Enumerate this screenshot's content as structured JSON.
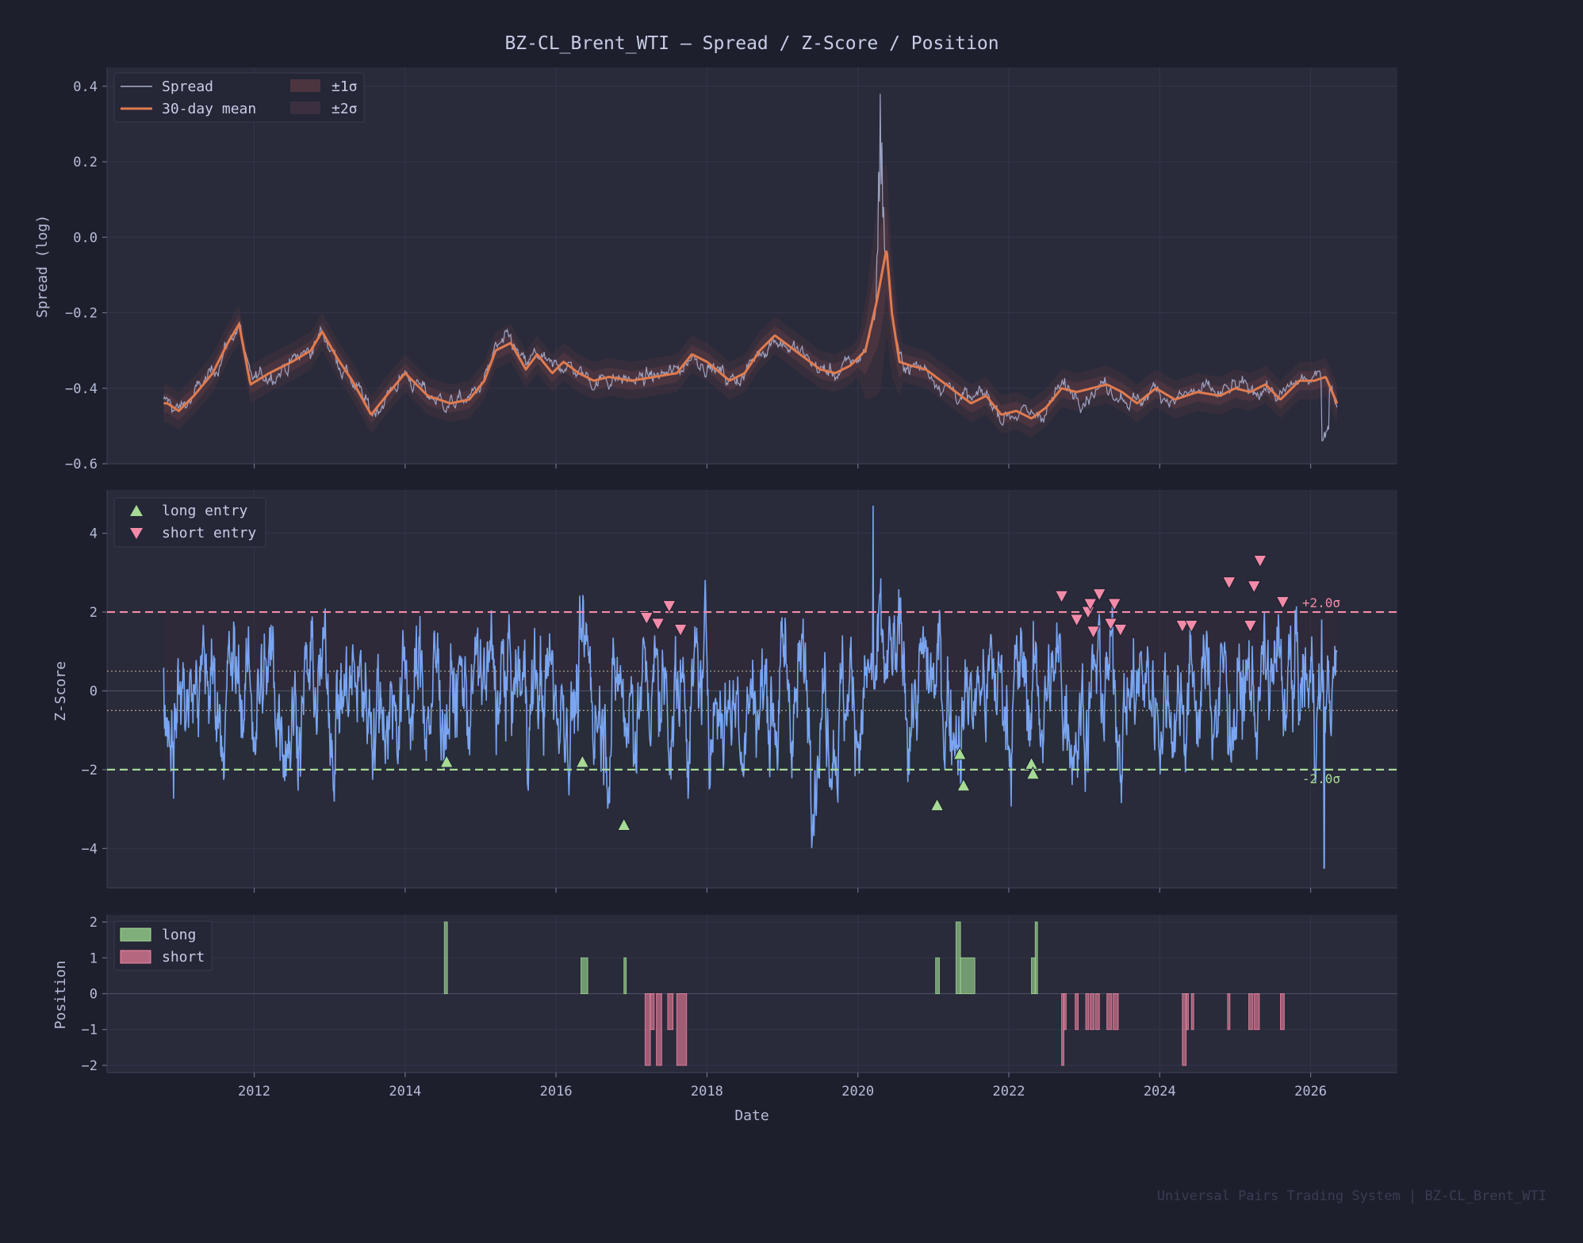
{
  "title": "BZ-CL_Brent_WTI  —  Spread  /  Z-Score  /  Position",
  "footer": "Universal Pairs Trading System  |  BZ-CL_Brent_WTI",
  "colors": {
    "background": "#1e1f2d",
    "panel": "#292a3a",
    "spread_line": "#a9afd0",
    "mean_line": "#e07b4f",
    "band": "#5a3a42",
    "zscore_line": "#7aa5f0",
    "long": "#a6da95",
    "short": "#f38ba8",
    "threshold_long": "#a6da95",
    "threshold_short": "#f38ba8",
    "exit_band": "#c8b89a",
    "text": "#b7bdd8",
    "footer": "#3a3d52"
  },
  "chart_data": [
    {
      "type": "line",
      "panel": "spread",
      "ylabel": "Spread (log)",
      "ylim": [
        -0.6,
        0.45
      ],
      "yticks": [
        0.4,
        0.2,
        0.0,
        -0.2,
        -0.4,
        -0.6
      ],
      "ytick_labels": [
        "0.4",
        "0.2",
        "0.0",
        "−0.2",
        "−0.4",
        "−0.6"
      ],
      "grid": true,
      "legend_position": "top-left",
      "legend": [
        "Spread",
        "30-day mean",
        "±1σ",
        "±2σ"
      ],
      "series": [
        {
          "name": "30-day mean",
          "x": [
            2010.85,
            2011.0,
            2011.2,
            2011.45,
            2011.65,
            2011.8,
            2011.95,
            2012.2,
            2012.5,
            2012.75,
            2012.9,
            2013.1,
            2013.3,
            2013.55,
            2013.75,
            2014.0,
            2014.3,
            2014.6,
            2014.85,
            2015.05,
            2015.2,
            2015.4,
            2015.6,
            2015.75,
            2015.95,
            2016.1,
            2016.3,
            2016.5,
            2016.7,
            2017.0,
            2017.3,
            2017.6,
            2017.8,
            2018.0,
            2018.3,
            2018.5,
            2018.7,
            2018.9,
            2019.1,
            2019.3,
            2019.5,
            2019.7,
            2019.9,
            2020.1,
            2020.25,
            2020.38,
            2020.45,
            2020.55,
            2020.7,
            2020.9,
            2021.1,
            2021.3,
            2021.5,
            2021.7,
            2021.9,
            2022.1,
            2022.3,
            2022.5,
            2022.7,
            2022.9,
            2023.1,
            2023.3,
            2023.5,
            2023.7,
            2023.95,
            2024.2,
            2024.5,
            2024.8,
            2025.0,
            2025.2,
            2025.4,
            2025.6,
            2025.85,
            2026.05,
            2026.2,
            2026.35
          ],
          "y": [
            -0.44,
            -0.46,
            -0.42,
            -0.36,
            -0.28,
            -0.23,
            -0.39,
            -0.36,
            -0.33,
            -0.3,
            -0.25,
            -0.32,
            -0.38,
            -0.47,
            -0.42,
            -0.36,
            -0.42,
            -0.44,
            -0.43,
            -0.38,
            -0.3,
            -0.28,
            -0.35,
            -0.31,
            -0.36,
            -0.33,
            -0.36,
            -0.38,
            -0.37,
            -0.38,
            -0.37,
            -0.36,
            -0.31,
            -0.33,
            -0.38,
            -0.36,
            -0.3,
            -0.26,
            -0.29,
            -0.32,
            -0.35,
            -0.36,
            -0.34,
            -0.3,
            -0.17,
            -0.03,
            -0.2,
            -0.33,
            -0.34,
            -0.35,
            -0.38,
            -0.41,
            -0.44,
            -0.42,
            -0.47,
            -0.46,
            -0.48,
            -0.45,
            -0.4,
            -0.41,
            -0.4,
            -0.39,
            -0.41,
            -0.44,
            -0.4,
            -0.43,
            -0.41,
            -0.42,
            -0.4,
            -0.41,
            -0.39,
            -0.43,
            -0.38,
            -0.38,
            -0.37,
            -0.44
          ]
        },
        {
          "name": "Spread",
          "noise_amplitude": 0.02,
          "spike_peak": [
            2020.3,
            0.41
          ],
          "trough": [
            2026.2,
            -0.54
          ]
        }
      ]
    },
    {
      "type": "line",
      "panel": "zscore",
      "ylabel": "Z-Score",
      "ylim": [
        -5.0,
        5.1
      ],
      "yticks": [
        4,
        2,
        0,
        -2,
        -4
      ],
      "ytick_labels": [
        "4",
        "2",
        "0",
        "−2",
        "−4"
      ],
      "grid": true,
      "legend_position": "top-left",
      "legend": [
        "long entry",
        "short entry"
      ],
      "thresholds": [
        {
          "value": 2.0,
          "label": "+2.0σ",
          "color": "#f38ba8"
        },
        {
          "value": -2.0,
          "label": "-2.0σ",
          "color": "#a6da95"
        }
      ],
      "exit_band": [
        -0.5,
        0.5
      ],
      "zscore_range": [
        -4.5,
        4.7
      ],
      "long_entries": {
        "x": [
          2014.55,
          2016.35,
          2016.9,
          2021.05,
          2021.35,
          2021.4,
          2022.3,
          2022.32
        ],
        "y": [
          -1.8,
          -1.8,
          -3.4,
          -2.9,
          -1.6,
          -2.4,
          -1.85,
          -2.1
        ]
      },
      "short_entries": {
        "x": [
          2017.2,
          2017.35,
          2017.5,
          2017.65,
          2022.7,
          2022.9,
          2023.05,
          2023.08,
          2023.12,
          2023.2,
          2023.35,
          2023.4,
          2023.48,
          2024.3,
          2024.42,
          2024.92,
          2025.2,
          2025.25,
          2025.33,
          2025.63
        ],
        "y": [
          1.85,
          1.7,
          2.15,
          1.55,
          2.4,
          1.8,
          2.0,
          2.2,
          1.5,
          2.45,
          1.7,
          2.2,
          1.55,
          1.65,
          1.65,
          2.75,
          1.65,
          2.65,
          3.3,
          2.25
        ]
      }
    },
    {
      "type": "bar",
      "panel": "position",
      "ylabel": "Position",
      "xlabel": "Date",
      "ylim": [
        -2.2,
        2.2
      ],
      "yticks": [
        2,
        1,
        0,
        -1,
        -2
      ],
      "ytick_labels": [
        "2",
        "1",
        "0",
        "−1",
        "−2"
      ],
      "grid": true,
      "legend_position": "top-left",
      "legend": [
        "long",
        "short"
      ],
      "long": [
        [
          2014.52,
          2014.56,
          2
        ],
        [
          2016.33,
          2016.42,
          1
        ],
        [
          2016.9,
          2016.93,
          1
        ],
        [
          2021.03,
          2021.08,
          1
        ],
        [
          2021.3,
          2021.36,
          2
        ],
        [
          2021.36,
          2021.55,
          1
        ],
        [
          2022.3,
          2022.35,
          1
        ],
        [
          2022.35,
          2022.38,
          2
        ]
      ],
      "short": [
        [
          2017.18,
          2017.25,
          -2
        ],
        [
          2017.25,
          2017.3,
          -1
        ],
        [
          2017.33,
          2017.4,
          -2
        ],
        [
          2017.48,
          2017.55,
          -1
        ],
        [
          2017.6,
          2017.73,
          -2
        ],
        [
          2022.7,
          2022.73,
          -2
        ],
        [
          2022.73,
          2022.76,
          -1
        ],
        [
          2022.88,
          2022.92,
          -1
        ],
        [
          2023.02,
          2023.06,
          -1
        ],
        [
          2023.08,
          2023.13,
          -1
        ],
        [
          2023.15,
          2023.2,
          -1
        ],
        [
          2023.3,
          2023.36,
          -1
        ],
        [
          2023.38,
          2023.45,
          -1
        ],
        [
          2024.3,
          2024.35,
          -2
        ],
        [
          2024.35,
          2024.38,
          -1
        ],
        [
          2024.42,
          2024.45,
          -1
        ],
        [
          2024.9,
          2024.93,
          -1
        ],
        [
          2025.18,
          2025.23,
          -1
        ],
        [
          2025.25,
          2025.32,
          -1
        ],
        [
          2025.6,
          2025.65,
          -1
        ]
      ]
    }
  ],
  "shared_xaxis": {
    "label": "Date",
    "xlim": [
      2010.05,
      2027.15
    ],
    "ticks": [
      2012,
      2014,
      2016,
      2018,
      2020,
      2022,
      2024,
      2026
    ],
    "tick_labels": [
      "2012",
      "2014",
      "2016",
      "2018",
      "2020",
      "2022",
      "2024",
      "2026"
    ],
    "data_start": 2010.8,
    "data_end": 2026.35
  }
}
